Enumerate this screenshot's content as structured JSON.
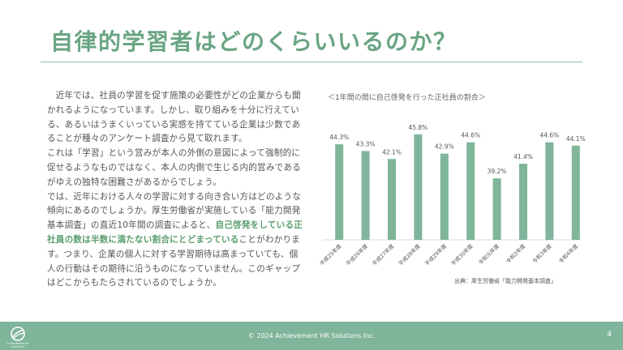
{
  "header": {
    "title": "自律的学習者はどのくらいいるのか？"
  },
  "body": {
    "p1": "近年では、社員の学習を促す施策の必要性がどの企業からも聞かれるようになっています。しかし、取り組みを十分に行えている、あるいはうまくいっている実感を持てている企業は少数であることが種々のアンケート調査から見て取れます。",
    "p2": "これは「学習」という営みが本人の外側の意図によって強制的に促せるようなものではなく、本人の内側で生じる内的営みであるがゆえの独特な困難さがあるからでしょう。",
    "p3_before": "では、近年における人々の学習に対する向き合い方はどのような傾向にあるのでしょうか。厚生労働省が実施している「能力開発基本調査」の直近10年間の調査によると、",
    "p3_highlight": "自己啓発をしている正社員の数は半数に満たない割合にとどまっている",
    "p3_after": "ことがわかります。つまり、企業の個人に対する学習期待は高まっていても、個人の行動はその期待に沿うものになっていません。このギャップはどこからもたらされているのでしょうか。"
  },
  "chart_data": {
    "type": "bar",
    "title": "＜1年間の間に自己啓発を行った正社員の割合＞",
    "categories": [
      "平成25年度",
      "平成26年度",
      "平成27年度",
      "平成28年度",
      "平成29年度",
      "平成30年度",
      "令和元年度",
      "令和2年度",
      "令和3年度",
      "令和4年度"
    ],
    "values": [
      44.3,
      43.3,
      42.1,
      45.8,
      42.9,
      44.6,
      39.2,
      41.4,
      44.6,
      44.1
    ],
    "value_labels": [
      "44.3%",
      "43.3%",
      "42.1%",
      "45.8%",
      "42.9%",
      "44.6%",
      "39.2%",
      "41.4%",
      "44.6%",
      "44.1%"
    ],
    "ylim": [
      30,
      46.5
    ],
    "grid": false,
    "bar_color": "#7fb59a"
  },
  "source": "出典：厚生労働省「能力開発基本調査」",
  "footer": {
    "copyright": "© 2024 Achievement HR Solutions Inc.",
    "page_number": "4",
    "logo_text": "ACHIEVEMENT HR SOLUTIONS"
  }
}
